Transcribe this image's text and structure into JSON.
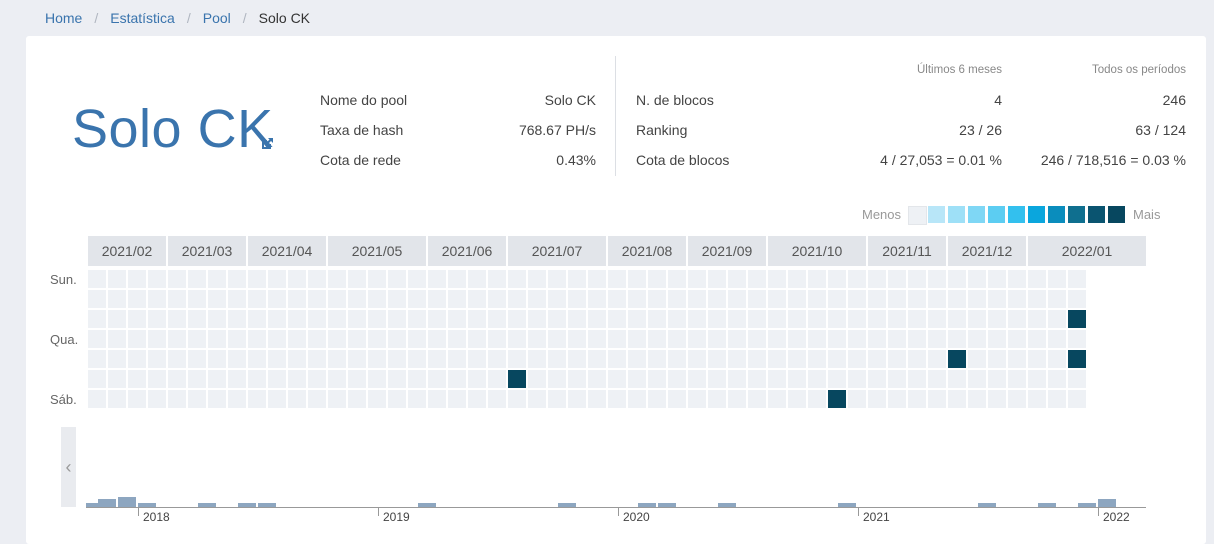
{
  "breadcrumb": {
    "items": [
      "Home",
      "Estatística",
      "Pool"
    ],
    "current": "Solo CK"
  },
  "pool": {
    "name": "Solo CK",
    "left_table": [
      {
        "label": "Nome do pool",
        "value": "Solo CK"
      },
      {
        "label": "Taxa de hash",
        "value": "768.67 PH/s"
      },
      {
        "label": "Cota de rede",
        "value": "0.43%"
      }
    ],
    "right_table": {
      "col_6m": "Últimos 6 meses",
      "col_all": "Todos os períodos",
      "rows": [
        {
          "label": "N. de blocos",
          "v6m": "4",
          "vall": "246"
        },
        {
          "label": "Ranking",
          "v6m": "23 / 26",
          "vall": "63 / 124"
        },
        {
          "label": "Cota de blocos",
          "v6m": "4 / 27,053 = 0.01 %",
          "vall": "246 / 718,516 = 0.03 %"
        }
      ]
    }
  },
  "heatmap": {
    "legend_less": "Menos",
    "legend_more": "Mais",
    "legend_colors": [
      "#eef1f5",
      "#b8e6f8",
      "#9ee0f7",
      "#7fd7f5",
      "#5ccdf2",
      "#33c0ee",
      "#0aa6dd",
      "#0a8dbd",
      "#0f6f8f",
      "#0a5470",
      "#07475f"
    ],
    "months": [
      {
        "label": "2021/02",
        "weeks": 4
      },
      {
        "label": "2021/03",
        "weeks": 4
      },
      {
        "label": "2021/04",
        "weeks": 4
      },
      {
        "label": "2021/05",
        "weeks": 5
      },
      {
        "label": "2021/06",
        "weeks": 4
      },
      {
        "label": "2021/07",
        "weeks": 5
      },
      {
        "label": "2021/08",
        "weeks": 4
      },
      {
        "label": "2021/09",
        "weeks": 4
      },
      {
        "label": "2021/10",
        "weeks": 5
      },
      {
        "label": "2021/11",
        "weeks": 4
      },
      {
        "label": "2021/12",
        "weeks": 4
      },
      {
        "label": "2022/01",
        "weeks": 6
      }
    ],
    "day_labels": [
      {
        "label": "Sun.",
        "row": 0
      },
      {
        "label": "Qua.",
        "row": 3
      },
      {
        "label": "Sáb.",
        "row": 6
      }
    ],
    "total_weeks": 50,
    "last_week_rows": 7,
    "filled_cells": [
      {
        "week": 21,
        "day": 5
      },
      {
        "week": 37,
        "day": 6
      },
      {
        "week": 43,
        "day": 4
      },
      {
        "week": 49,
        "day": 2
      },
      {
        "week": 49,
        "day": 4
      }
    ],
    "empty_color": "#eef1f5",
    "fill_color": "#07475f"
  },
  "timeline": {
    "year_labels": [
      "2018",
      "2019",
      "2020",
      "2021",
      "2022"
    ],
    "accent": "#8da6c0"
  }
}
